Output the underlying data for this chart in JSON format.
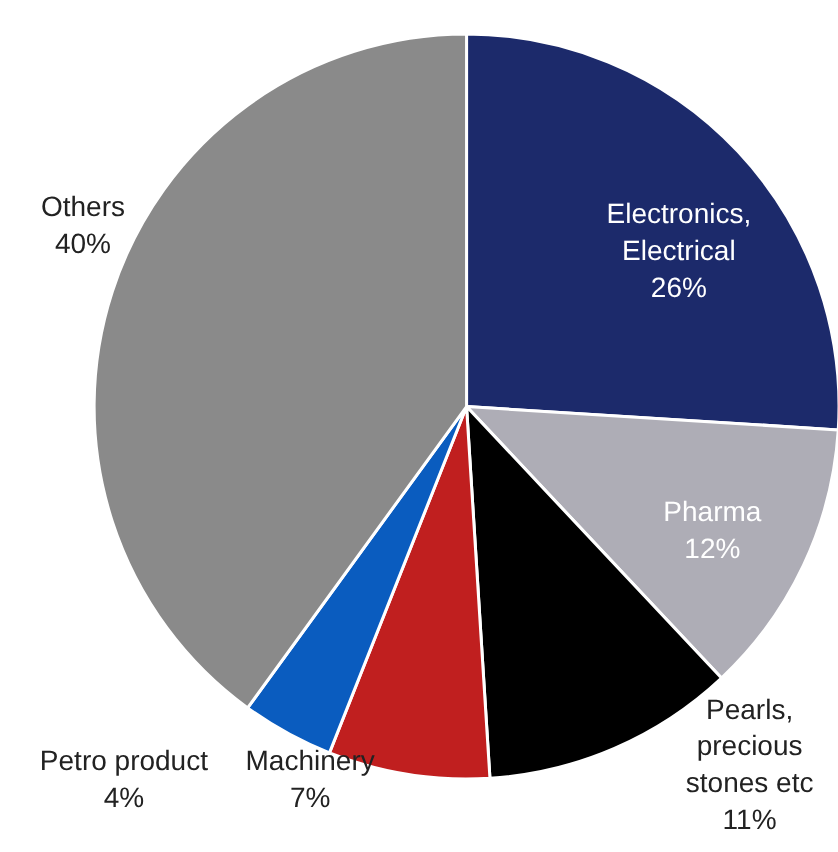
{
  "chart_data": {
    "type": "pie",
    "categories": [
      "Electronics,\nElectrical",
      "Pharma",
      "Pearls,\nprecious\nstones etc",
      "Machinery",
      "Petro product",
      "Others"
    ],
    "values": [
      26,
      12,
      11,
      7,
      4,
      40
    ],
    "value_labels": [
      "26%",
      "12%",
      "11%",
      "7%",
      "4%",
      "40%"
    ],
    "colors": [
      "#1c2a6b",
      "#aeadb6",
      "#000000",
      "#c01f1f",
      "#0a5cbf",
      "#8a8a8a"
    ]
  }
}
